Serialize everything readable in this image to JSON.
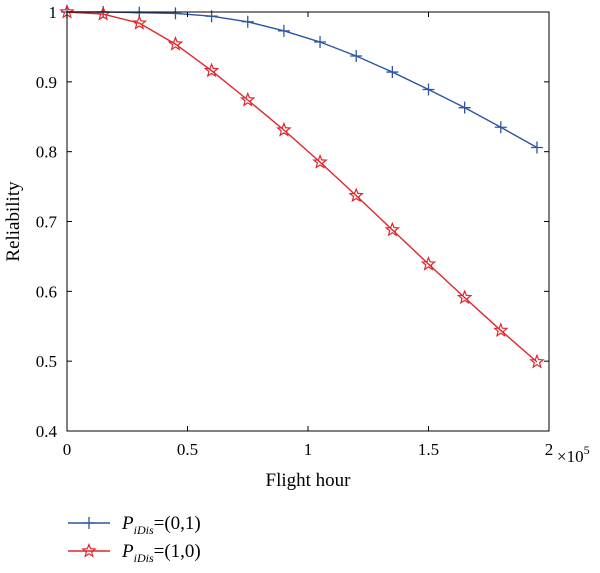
{
  "chart_data": {
    "type": "line",
    "xlabel": "Flight hour",
    "ylabel": "Reliability",
    "x_exponent_label": "×10",
    "x_exponent_power": "5",
    "xlim": [
      0,
      2
    ],
    "ylim": [
      0.4,
      1.0
    ],
    "x_ticks": [
      "0",
      "0.5",
      "1",
      "1.5",
      "2"
    ],
    "y_ticks": [
      "0.4",
      "0.5",
      "0.6",
      "0.7",
      "0.8",
      "0.9",
      "1"
    ],
    "x_tick_values": [
      0,
      0.5,
      1,
      1.5,
      2
    ],
    "y_tick_values": [
      0.4,
      0.5,
      0.6,
      0.7,
      0.8,
      0.9,
      1.0
    ],
    "grid": false,
    "legend_position": "below",
    "series": [
      {
        "legend_main": "P",
        "legend_sub": "iDis",
        "legend_value": "=(0,1)",
        "color": "#2e55a3",
        "marker": "plus",
        "x": [
          0,
          0.15,
          0.3,
          0.45,
          0.6,
          0.75,
          0.9,
          1.05,
          1.2,
          1.35,
          1.5,
          1.65,
          1.8,
          1.95
        ],
        "y": [
          1.0,
          1.0,
          0.999,
          0.998,
          0.994,
          0.986,
          0.973,
          0.957,
          0.937,
          0.914,
          0.889,
          0.863,
          0.835,
          0.806
        ]
      },
      {
        "legend_main": "P",
        "legend_sub": "iDis",
        "legend_value": "=(1,0)",
        "color": "#e0262b",
        "marker": "star",
        "x": [
          0,
          0.15,
          0.3,
          0.45,
          0.6,
          0.75,
          0.9,
          1.05,
          1.2,
          1.35,
          1.5,
          1.65,
          1.8,
          1.95
        ],
        "y": [
          1.0,
          0.997,
          0.984,
          0.954,
          0.916,
          0.874,
          0.831,
          0.785,
          0.737,
          0.688,
          0.639,
          0.591,
          0.544,
          0.499
        ]
      }
    ]
  }
}
